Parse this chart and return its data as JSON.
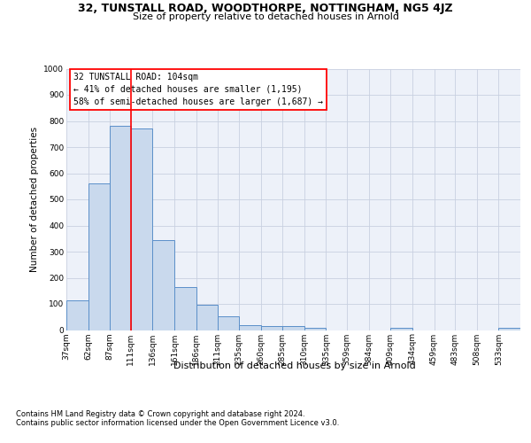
{
  "title1": "32, TUNSTALL ROAD, WOODTHORPE, NOTTINGHAM, NG5 4JZ",
  "title2": "Size of property relative to detached houses in Arnold",
  "xlabel": "Distribution of detached houses by size in Arnold",
  "ylabel": "Number of detached properties",
  "footnote1": "Contains HM Land Registry data © Crown copyright and database right 2024.",
  "footnote2": "Contains public sector information licensed under the Open Government Licence v3.0.",
  "annotation_line1": "32 TUNSTALL ROAD: 104sqm",
  "annotation_line2": "← 41% of detached houses are smaller (1,195)",
  "annotation_line3": "58% of semi-detached houses are larger (1,687) →",
  "bar_color": "#c9d9ed",
  "bar_edge_color": "#5b8fc9",
  "red_line_x": 99,
  "categories": [
    "37sqm",
    "62sqm",
    "87sqm",
    "111sqm",
    "136sqm",
    "161sqm",
    "186sqm",
    "211sqm",
    "235sqm",
    "260sqm",
    "285sqm",
    "310sqm",
    "335sqm",
    "359sqm",
    "384sqm",
    "409sqm",
    "434sqm",
    "459sqm",
    "483sqm",
    "508sqm",
    "533sqm"
  ],
  "bin_edges": [
    25,
    50,
    75,
    99,
    124,
    149,
    174,
    199,
    223,
    248,
    273,
    298,
    323,
    347,
    372,
    397,
    422,
    447,
    471,
    496,
    521,
    546
  ],
  "values": [
    112,
    562,
    780,
    770,
    345,
    165,
    98,
    52,
    18,
    14,
    14,
    10,
    0,
    0,
    0,
    8,
    0,
    0,
    0,
    0,
    8
  ],
  "ylim": [
    0,
    1000
  ],
  "yticks": [
    0,
    100,
    200,
    300,
    400,
    500,
    600,
    700,
    800,
    900,
    1000
  ],
  "background_color": "#edf1f9",
  "grid_color": "#c8d0e0",
  "title1_fontsize": 9.0,
  "title2_fontsize": 8.0,
  "ylabel_fontsize": 7.5,
  "xlabel_fontsize": 8.0,
  "tick_fontsize": 6.5,
  "footnote_fontsize": 6.0,
  "annotation_fontsize": 7.0
}
